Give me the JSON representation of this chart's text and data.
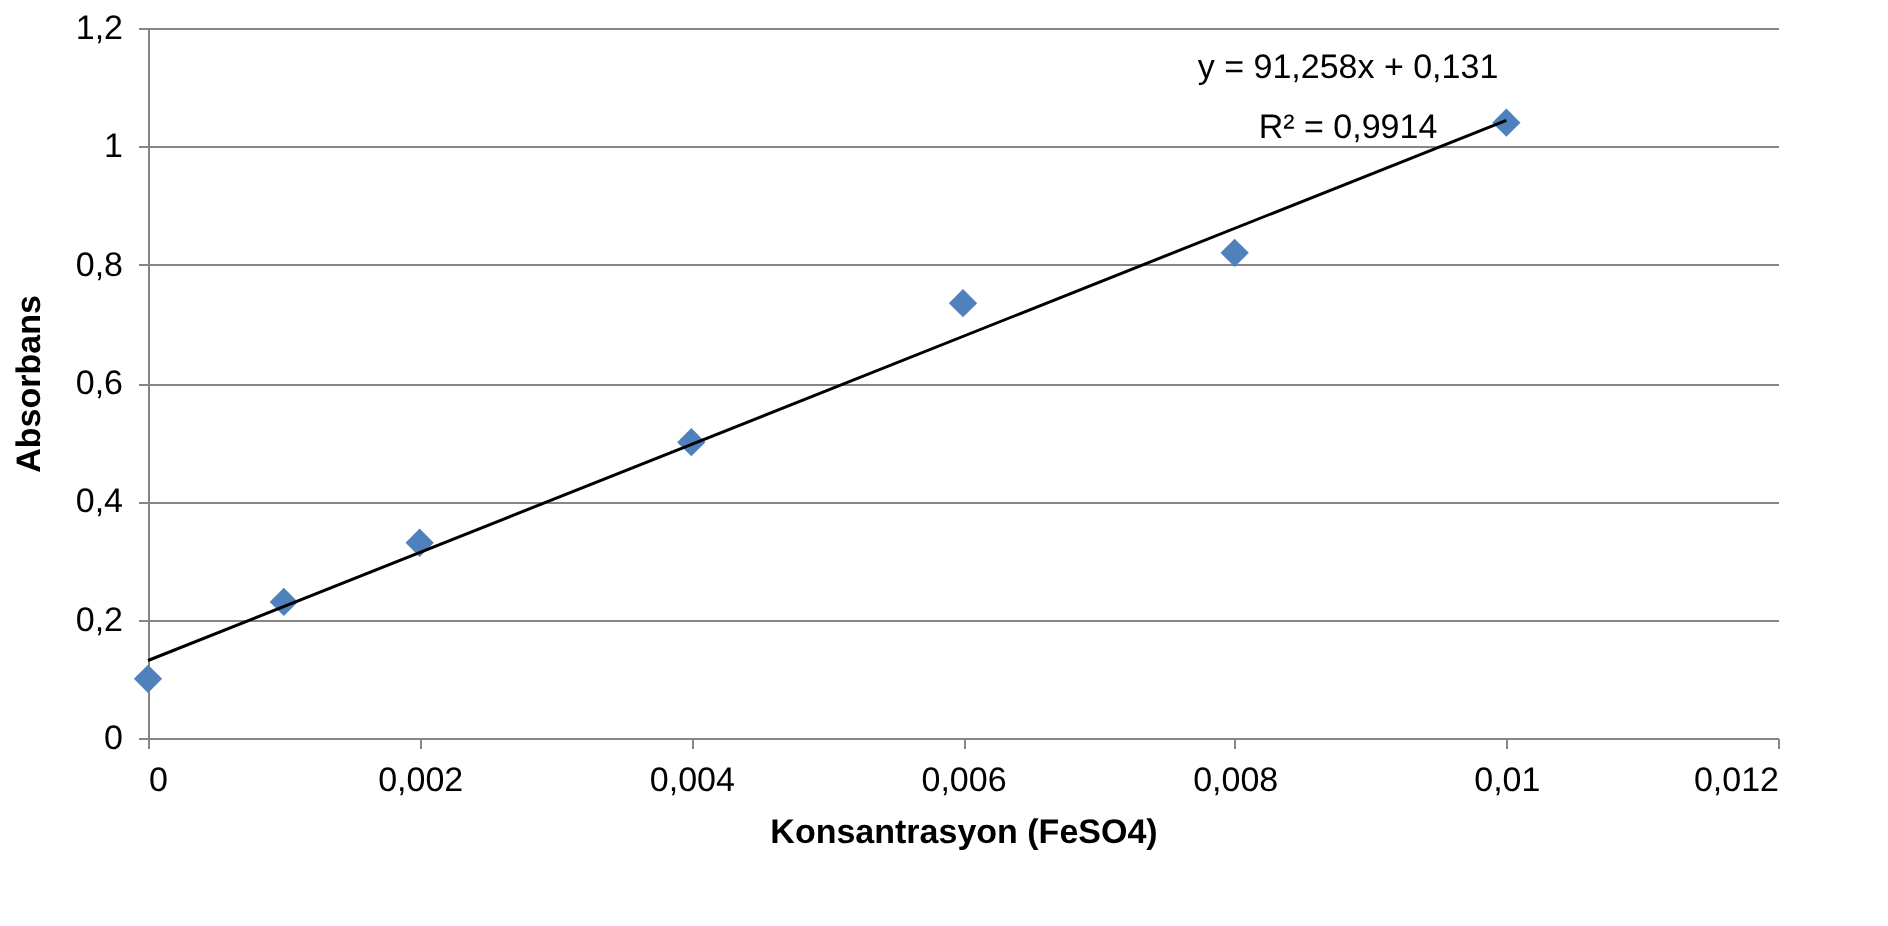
{
  "chart_data": {
    "type": "scatter",
    "xlabel": "Konsantrasyon (FeSO4)",
    "ylabel": "Absorbans",
    "x": [
      0,
      0.001,
      0.002,
      0.004,
      0.006,
      0.008,
      0.01
    ],
    "series": [
      {
        "color": "#4f81bd",
        "marker": "diamond",
        "values": [
          0.1,
          0.23,
          0.33,
          0.5,
          0.735,
          0.82,
          1.04
        ]
      },
      {
        "type": "line",
        "color": "#000000",
        "marker": "none",
        "line_style": "solid",
        "x": [
          0,
          0.01
        ],
        "values": [
          0.131,
          1.044
        ]
      }
    ],
    "xlim": [
      0,
      0.012
    ],
    "xticks": [
      0,
      {
        "value": 0.002,
        "label": "0,002"
      },
      {
        "value": 0.004,
        "label": "0,004"
      },
      {
        "value": 0.006,
        "label": "0,006"
      },
      {
        "value": 0.008,
        "label": "0,008"
      },
      {
        "value": 0.01,
        "label": "0,01"
      },
      {
        "value": 0.012,
        "label": "0,012"
      }
    ],
    "ylim": [
      0,
      1.2
    ],
    "yticks": [
      0,
      {
        "value": 0.2,
        "label": "0,2"
      },
      {
        "value": 0.4,
        "label": "0,4"
      },
      {
        "value": 0.6,
        "label": "0,6"
      },
      {
        "value": 0.8,
        "label": "0,8"
      },
      1,
      {
        "value": 1.2,
        "label": "1,2"
      }
    ],
    "grid": "y",
    "annotations": [
      "y = 91,258x + 0,131",
      "R² = 0,9914"
    ]
  }
}
